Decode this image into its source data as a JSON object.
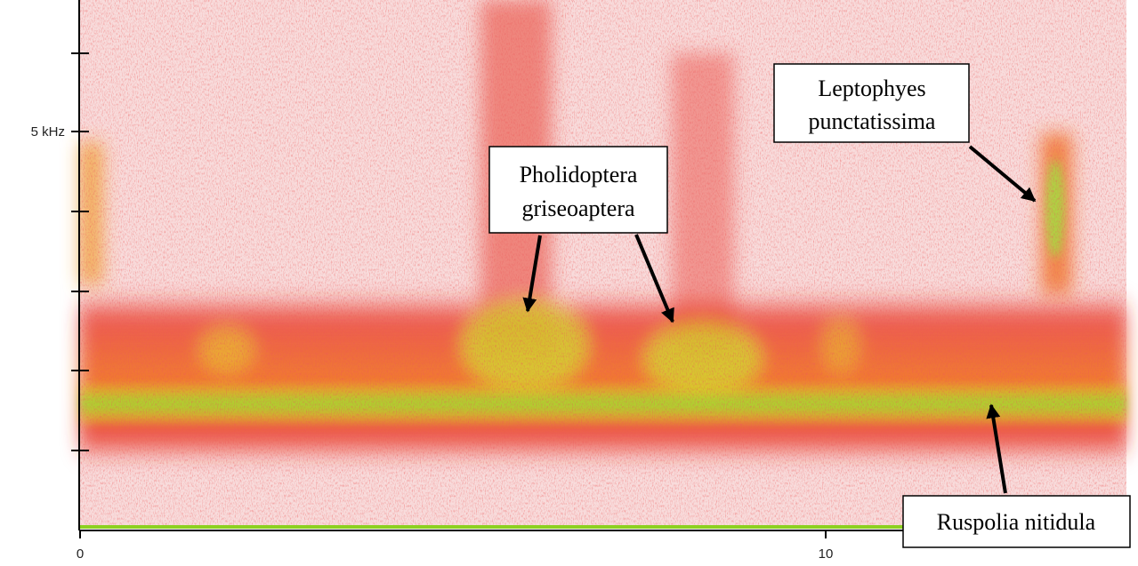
{
  "axis": {
    "y_label": "5 kHz",
    "x_ticks": [
      "0",
      "10"
    ]
  },
  "annotations": [
    {
      "lines": [
        "Leptophyes",
        "punctatissima"
      ]
    },
    {
      "lines": [
        "Pholidoptera",
        "griseoaptera"
      ]
    },
    {
      "lines": [
        "Ruspolia nitidula"
      ]
    }
  ]
}
